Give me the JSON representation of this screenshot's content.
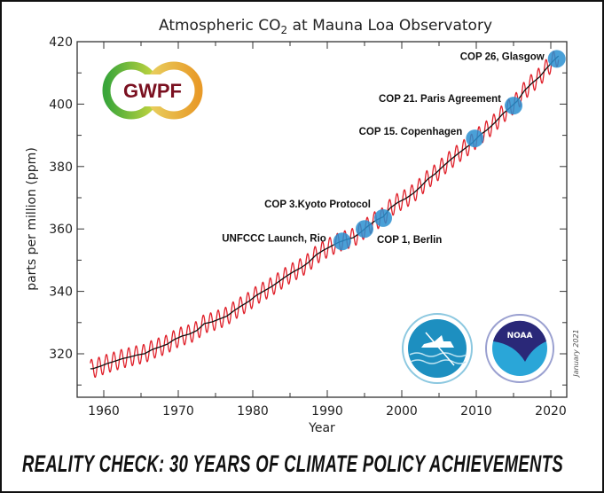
{
  "chart_data": {
    "type": "line",
    "title": "Atmospheric CO",
    "title_subscript": "2",
    "title_rest": " at Mauna Loa Observatory",
    "xlabel": "Year",
    "ylabel": "parts per million (ppm)",
    "xlim": [
      1956.4,
      2022.1
    ],
    "ylim": [
      306,
      420
    ],
    "x_ticks": [
      1960,
      1970,
      1980,
      1990,
      2000,
      2010,
      2020
    ],
    "y_ticks": [
      320,
      340,
      360,
      380,
      400,
      420
    ],
    "grid": false,
    "series": [
      {
        "color": "#e0202a",
        "style": "monthly seasonal cycle",
        "seasonal_amplitude_ppm": 3
      },
      {
        "color": "#111111",
        "style": "annual trend"
      }
    ],
    "annual_mean": {
      "x": [
        1958,
        1959,
        1960,
        1961,
        1962,
        1963,
        1964,
        1965,
        1966,
        1967,
        1968,
        1969,
        1970,
        1971,
        1972,
        1973,
        1974,
        1975,
        1976,
        1977,
        1978,
        1979,
        1980,
        1981,
        1982,
        1983,
        1984,
        1985,
        1986,
        1987,
        1988,
        1989,
        1990,
        1991,
        1992,
        1993,
        1994,
        1995,
        1996,
        1997,
        1998,
        1999,
        2000,
        2001,
        2002,
        2003,
        2004,
        2005,
        2006,
        2007,
        2008,
        2009,
        2010,
        2011,
        2012,
        2013,
        2014,
        2015,
        2016,
        2017,
        2018,
        2019,
        2020,
        2021
      ],
      "y": [
        315.2,
        315.98,
        316.91,
        317.64,
        318.45,
        318.99,
        319.62,
        320.04,
        321.37,
        322.18,
        323.05,
        324.62,
        325.68,
        326.32,
        327.46,
        329.68,
        330.19,
        331.12,
        332.03,
        333.84,
        335.41,
        336.84,
        338.76,
        340.12,
        341.48,
        343.15,
        344.87,
        346.35,
        347.61,
        349.31,
        351.69,
        353.2,
        354.45,
        355.7,
        356.54,
        357.21,
        358.96,
        360.97,
        362.74,
        363.88,
        366.84,
        368.54,
        369.71,
        371.32,
        373.45,
        375.98,
        377.7,
        379.98,
        382.09,
        384.02,
        385.83,
        387.64,
        390.1,
        391.85,
        394.06,
        396.74,
        398.81,
        401.01,
        404.41,
        406.76,
        408.72,
        411.66,
        414.24,
        416.45
      ]
    },
    "annotations": [
      {
        "label": "UNFCCC Launch, Rio",
        "year": 1992,
        "ppm": 356
      },
      {
        "label": "COP 1, Berlin",
        "year": 1995,
        "ppm": 360
      },
      {
        "label": "COP 3.Kyoto Protocol",
        "year": 1997.5,
        "ppm": 363.5
      },
      {
        "label": "COP 15. Copenhagen",
        "year": 2009.8,
        "ppm": 389
      },
      {
        "label": "COP 21. Paris Agreement",
        "year": 2015,
        "ppm": 399.5
      },
      {
        "label": "COP 26, Glasgow",
        "year": 2020.8,
        "ppm": 414.5
      }
    ],
    "marker_color": "#2a8fd0",
    "side_note": "January 2021"
  },
  "logos": {
    "gwpf": "GWPF",
    "scripps": "Scripps Institution of Oceanography UCSD",
    "noaa": "NOAA"
  },
  "caption": "REALITY CHECK: 30 YEARS OF CLIMATE POLICY ACHIEVEMENTS"
}
